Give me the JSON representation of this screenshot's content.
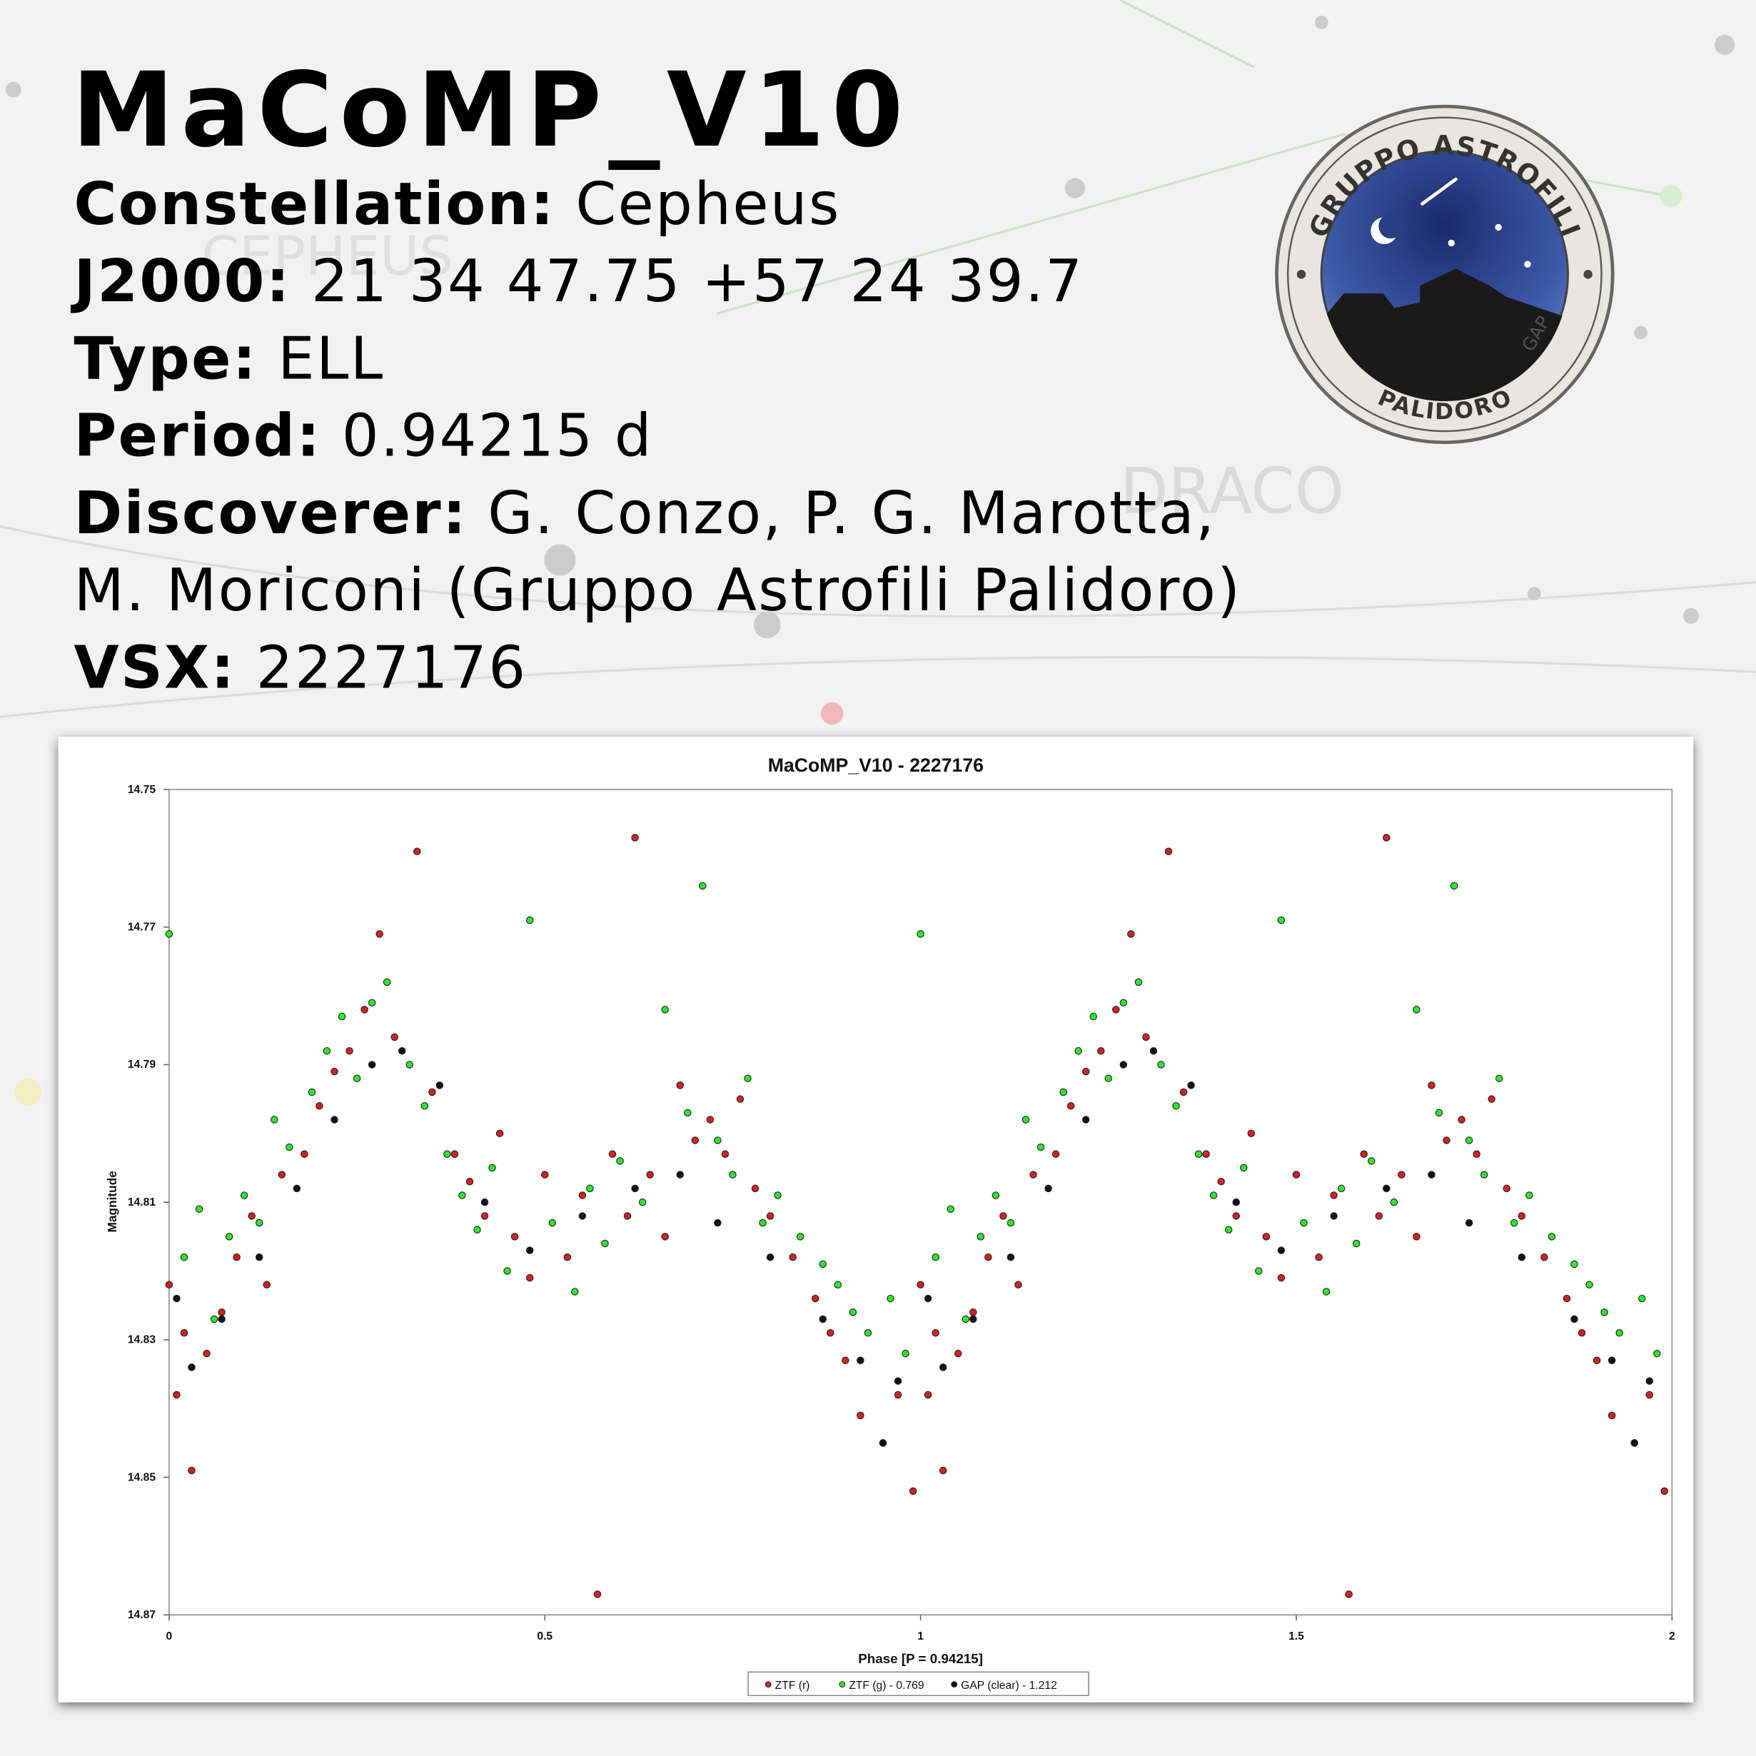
{
  "header": {
    "title": "MaCoMP_V10",
    "lines": [
      {
        "label": "Constellation:",
        "value": "Cepheus"
      },
      {
        "label": "J2000:",
        "value": "21 34 47.75 +57 24 39.7"
      },
      {
        "label": "Type:",
        "value": "ELL"
      },
      {
        "label": "Period:",
        "value": "0.94215 d"
      },
      {
        "label": "Discoverer:",
        "value": "G. Conzo, P. G. Marotta,"
      },
      {
        "value": "M. Moriconi (Gruppo Astrofili Palidoro)"
      },
      {
        "label": "VSX:",
        "value": "2227176"
      }
    ]
  },
  "background": {
    "labels": [
      "CEPHEUS",
      "DRACO"
    ]
  },
  "logo": {
    "top": "GRUPPO ASTROFILI",
    "bottom": "PALIDORO",
    "side": "GAP"
  },
  "chart_data": {
    "type": "scatter",
    "title": "MaCoMP_V10 - 2227176",
    "x_label": "Phase [P = 0.94215]",
    "y_label": "Magnitude",
    "xlim": [
      0,
      2
    ],
    "xticks": [
      0,
      0.5,
      1,
      1.5,
      2
    ],
    "ylim": [
      14.87,
      14.75
    ],
    "yticks": [
      14.75,
      14.77,
      14.79,
      14.81,
      14.83,
      14.85,
      14.87
    ],
    "legend": "bottom",
    "series": [
      {
        "name": "ZTF (r)",
        "color": "#d42020",
        "x": [
          0.0,
          0.01,
          0.02,
          0.03,
          0.05,
          0.07,
          0.09,
          0.11,
          0.13,
          0.15,
          0.18,
          0.2,
          0.22,
          0.24,
          0.26,
          0.28,
          0.3,
          0.33,
          0.35,
          0.38,
          0.4,
          0.42,
          0.44,
          0.46,
          0.48,
          0.5,
          0.53,
          0.55,
          0.57,
          0.59,
          0.61,
          0.62,
          0.64,
          0.66,
          0.68,
          0.7,
          0.72,
          0.74,
          0.76,
          0.78,
          0.8,
          0.83,
          0.86,
          0.88,
          0.9,
          0.92,
          0.95,
          0.97,
          0.99,
          1.0,
          1.01,
          1.02,
          1.03,
          1.05,
          1.07,
          1.09,
          1.11,
          1.13,
          1.15,
          1.18,
          1.2,
          1.22,
          1.24,
          1.26,
          1.28,
          1.3,
          1.33,
          1.35,
          1.38,
          1.4,
          1.42,
          1.44,
          1.46,
          1.48,
          1.5,
          1.53,
          1.55,
          1.57,
          1.59,
          1.61,
          1.62,
          1.64,
          1.66,
          1.68,
          1.7,
          1.72,
          1.74,
          1.76,
          1.78,
          1.8,
          1.83,
          1.86,
          1.88,
          1.9,
          1.92,
          1.95,
          1.97,
          1.99
        ],
        "values": [
          14.822,
          14.838,
          14.829,
          14.849,
          14.832,
          14.826,
          14.818,
          14.812,
          14.822,
          14.806,
          14.803,
          14.796,
          14.791,
          14.788,
          14.782,
          14.771,
          14.786,
          14.759,
          14.794,
          14.803,
          14.807,
          14.812,
          14.8,
          14.815,
          14.821,
          14.806,
          14.818,
          14.809,
          14.867,
          14.803,
          14.812,
          14.757,
          14.806,
          14.815,
          14.793,
          14.801,
          14.798,
          14.803,
          14.795,
          14.808,
          14.812,
          14.818,
          14.824,
          14.829,
          14.833,
          14.841,
          14.845,
          14.838,
          14.852,
          14.822,
          14.838,
          14.829,
          14.849,
          14.832,
          14.826,
          14.818,
          14.812,
          14.822,
          14.806,
          14.803,
          14.796,
          14.791,
          14.788,
          14.782,
          14.771,
          14.786,
          14.759,
          14.794,
          14.803,
          14.807,
          14.812,
          14.8,
          14.815,
          14.821,
          14.806,
          14.818,
          14.809,
          14.867,
          14.803,
          14.812,
          14.757,
          14.806,
          14.815,
          14.793,
          14.801,
          14.798,
          14.803,
          14.795,
          14.808,
          14.812,
          14.818,
          14.824,
          14.829,
          14.833,
          14.841,
          14.845,
          14.838,
          14.852
        ]
      },
      {
        "name": "ZTF (g) - 0.769",
        "color": "#2ee62e",
        "x": [
          0.0,
          0.02,
          0.04,
          0.06,
          0.08,
          0.1,
          0.12,
          0.14,
          0.16,
          0.19,
          0.21,
          0.23,
          0.25,
          0.27,
          0.29,
          0.32,
          0.34,
          0.37,
          0.39,
          0.41,
          0.43,
          0.45,
          0.48,
          0.51,
          0.54,
          0.56,
          0.58,
          0.6,
          0.63,
          0.66,
          0.69,
          0.71,
          0.73,
          0.75,
          0.77,
          0.79,
          0.81,
          0.84,
          0.87,
          0.89,
          0.91,
          0.93,
          0.96,
          0.98,
          1.0,
          1.02,
          1.04,
          1.06,
          1.08,
          1.1,
          1.12,
          1.14,
          1.16,
          1.19,
          1.21,
          1.23,
          1.25,
          1.27,
          1.29,
          1.32,
          1.34,
          1.37,
          1.39,
          1.41,
          1.43,
          1.45,
          1.48,
          1.51,
          1.54,
          1.56,
          1.58,
          1.6,
          1.63,
          1.66,
          1.69,
          1.71,
          1.73,
          1.75,
          1.77,
          1.79,
          1.81,
          1.84,
          1.87,
          1.89,
          1.91,
          1.93,
          1.96,
          1.98
        ],
        "values": [
          14.771,
          14.818,
          14.811,
          14.827,
          14.815,
          14.809,
          14.813,
          14.798,
          14.802,
          14.794,
          14.788,
          14.783,
          14.792,
          14.781,
          14.778,
          14.79,
          14.796,
          14.803,
          14.809,
          14.814,
          14.805,
          14.82,
          14.769,
          14.813,
          14.823,
          14.808,
          14.816,
          14.804,
          14.81,
          14.782,
          14.797,
          14.764,
          14.801,
          14.806,
          14.792,
          14.813,
          14.809,
          14.815,
          14.819,
          14.822,
          14.826,
          14.829,
          14.824,
          14.832,
          14.771,
          14.818,
          14.811,
          14.827,
          14.815,
          14.809,
          14.813,
          14.798,
          14.802,
          14.794,
          14.788,
          14.783,
          14.792,
          14.781,
          14.778,
          14.79,
          14.796,
          14.803,
          14.809,
          14.814,
          14.805,
          14.82,
          14.769,
          14.813,
          14.823,
          14.808,
          14.816,
          14.804,
          14.81,
          14.782,
          14.797,
          14.764,
          14.801,
          14.806,
          14.792,
          14.813,
          14.809,
          14.815,
          14.819,
          14.822,
          14.826,
          14.829,
          14.824,
          14.832
        ]
      },
      {
        "name": "GAP (clear) - 1.212",
        "color": "#111111",
        "x": [
          0.01,
          0.03,
          0.07,
          0.12,
          0.17,
          0.22,
          0.27,
          0.31,
          0.36,
          0.42,
          0.48,
          0.55,
          0.62,
          0.68,
          0.73,
          0.8,
          0.87,
          0.92,
          0.95,
          0.97,
          1.01,
          1.03,
          1.07,
          1.12,
          1.17,
          1.22,
          1.27,
          1.31,
          1.36,
          1.42,
          1.48,
          1.55,
          1.62,
          1.68,
          1.73,
          1.8,
          1.87,
          1.92,
          1.95,
          1.97
        ],
        "values": [
          14.824,
          14.834,
          14.827,
          14.818,
          14.808,
          14.798,
          14.79,
          14.788,
          14.793,
          14.81,
          14.817,
          14.812,
          14.808,
          14.806,
          14.813,
          14.818,
          14.827,
          14.833,
          14.845,
          14.836,
          14.824,
          14.834,
          14.827,
          14.818,
          14.808,
          14.798,
          14.79,
          14.788,
          14.793,
          14.81,
          14.817,
          14.812,
          14.808,
          14.806,
          14.813,
          14.818,
          14.827,
          14.833,
          14.845,
          14.836
        ]
      }
    ]
  }
}
